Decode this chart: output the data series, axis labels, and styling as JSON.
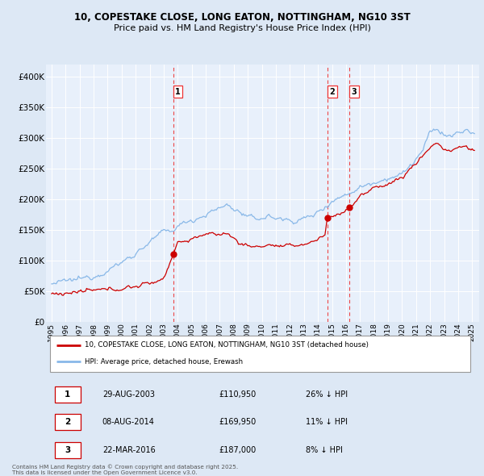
{
  "title_line1": "10, COPESTAKE CLOSE, LONG EATON, NOTTINGHAM, NG10 3ST",
  "title_line2": "Price paid vs. HM Land Registry's House Price Index (HPI)",
  "legend_label1": "10, COPESTAKE CLOSE, LONG EATON, NOTTINGHAM, NG10 3ST (detached house)",
  "legend_label2": "HPI: Average price, detached house, Erewash",
  "sale1_label": "1",
  "sale1_date": "29-AUG-2003",
  "sale1_price": "£110,950",
  "sale1_hpi": "26% ↓ HPI",
  "sale2_label": "2",
  "sale2_date": "08-AUG-2014",
  "sale2_price": "£169,950",
  "sale2_hpi": "11% ↓ HPI",
  "sale3_label": "3",
  "sale3_date": "22-MAR-2016",
  "sale3_price": "£187,000",
  "sale3_hpi": "8% ↓ HPI",
  "footer": "Contains HM Land Registry data © Crown copyright and database right 2025.\nThis data is licensed under the Open Government Licence v3.0.",
  "bg_color": "#dde8f5",
  "plot_bg_color": "#e8f0fb",
  "hpi_color": "#89b8e8",
  "price_color": "#cc0000",
  "vline_color": "#ee3333",
  "grid_color": "#ffffff",
  "ylim": [
    0,
    420000
  ],
  "yticks": [
    0,
    50000,
    100000,
    150000,
    200000,
    250000,
    300000,
    350000,
    400000
  ]
}
